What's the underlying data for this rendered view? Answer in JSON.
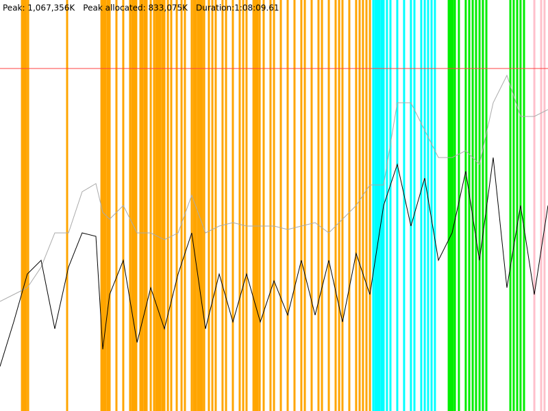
{
  "chart_data": {
    "type": "line",
    "labels": [
      "Peak: 1,067,356K",
      "Peak allocated: 833,075K",
      "Duration:1:08:09.61"
    ],
    "xlim": [
      0,
      4090
    ],
    "ylim": [
      0,
      1200000
    ],
    "limit": 1000000,
    "limit_color": "#ff4040",
    "x": [
      0,
      102,
      204,
      307,
      409,
      511,
      613,
      716,
      767,
      818,
      920,
      1023,
      1125,
      1227,
      1329,
      1431,
      1534,
      1636,
      1738,
      1840,
      1943,
      2045,
      2147,
      2249,
      2352,
      2454,
      2556,
      2658,
      2761,
      2863,
      2965,
      3067,
      3169,
      3272,
      3374,
      3476,
      3578,
      3681,
      3783,
      3885,
      3988,
      4090
    ],
    "series": [
      {
        "color": "#aaaaaa",
        "values": [
          320000,
          340000,
          360000,
          420000,
          520000,
          520000,
          640000,
          664000,
          580000,
          560000,
          600000,
          520000,
          520000,
          500000,
          520000,
          630000,
          520000,
          540000,
          550000,
          540000,
          540000,
          540000,
          530000,
          540000,
          550000,
          520000,
          560000,
          600000,
          660000,
          660000,
          900000,
          900000,
          820000,
          740000,
          740000,
          760000,
          720000,
          900000,
          980000,
          860000,
          860000,
          880000
        ]
      },
      {
        "color": "#000000",
        "values": [
          130000,
          260000,
          400000,
          440000,
          240000,
          420000,
          520000,
          510000,
          180000,
          340000,
          440000,
          200000,
          360000,
          240000,
          400000,
          520000,
          240000,
          400000,
          260000,
          400000,
          260000,
          380000,
          280000,
          440000,
          280000,
          440000,
          260000,
          460000,
          340000,
          600000,
          720000,
          540000,
          680000,
          440000,
          520000,
          700000,
          440000,
          740000,
          360000,
          600000,
          340000,
          600000
        ]
      }
    ],
    "markers": [
      {
        "color": "#ffa500",
        "x": [
          164,
          179,
          194,
          210,
          501,
          757,
          772,
          787,
          803,
          818,
          869,
          920,
          971,
          987,
          1002,
          1017,
          1048,
          1063,
          1079,
          1094,
          1125,
          1150,
          1166,
          1181,
          1196,
          1212,
          1227,
          1253,
          1278,
          1319,
          1355,
          1380,
          1431,
          1447,
          1462,
          1478,
          1493,
          1508,
          1524,
          1559,
          1585,
          1610,
          1661,
          1687,
          1738,
          1789,
          1815,
          1840,
          1892,
          1907,
          1922,
          1938,
          1968,
          2019,
          2045,
          2096,
          2147,
          2198,
          2249,
          2275,
          2326,
          2377,
          2403,
          2454,
          2505,
          2531,
          2556,
          2607,
          2658,
          2684,
          2709,
          2735,
          2761
        ]
      },
      {
        "color": "#00ffff",
        "x": [
          2786,
          2802,
          2817,
          2832,
          2848,
          2863,
          2888,
          2914,
          2965,
          3016,
          3067,
          3093,
          3144,
          3170,
          3195,
          3221,
          3246
        ]
      },
      {
        "color": "#00ee00",
        "x": [
          3349,
          3364,
          3379,
          3395,
          3425,
          3476,
          3502,
          3528,
          3553,
          3579,
          3604,
          3630,
          3809,
          3834,
          3860,
          3885,
          3911
        ]
      },
      {
        "color": "#ffc0cb",
        "x": [
          3988,
          4039,
          4064
        ]
      }
    ]
  }
}
